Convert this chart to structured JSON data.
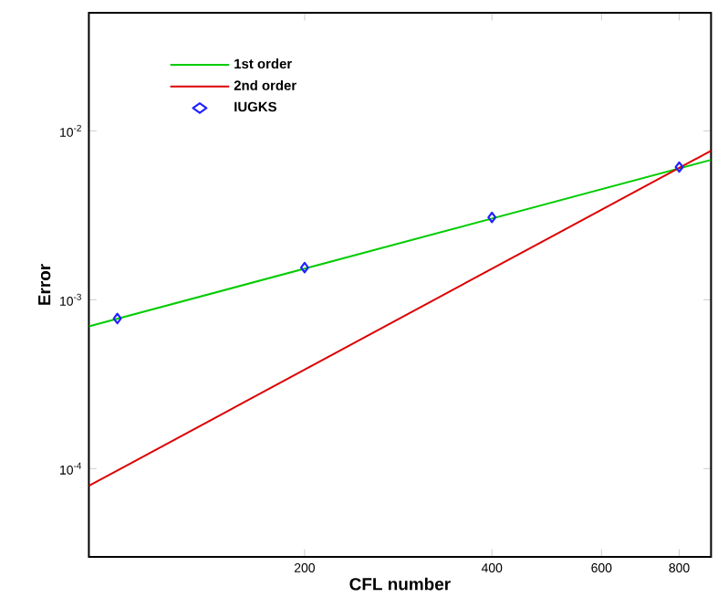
{
  "chart_data": {
    "type": "line",
    "xlabel": "CFL number",
    "ylabel": "Error",
    "log": "xy",
    "xlim": [
      90,
      900
    ],
    "ylim": [
      3e-05,
      0.05
    ],
    "xticks": [
      200,
      400,
      600,
      800
    ],
    "yticks": [
      {
        "value": 0.0001,
        "label": "10$^{-4}$"
      },
      {
        "value": 0.001,
        "label": "10$^{-3}$"
      },
      {
        "value": 0.01,
        "label": "10$^{-2}$"
      }
    ],
    "legend": "top left",
    "grid": false,
    "series": [
      {
        "name": "1st  order",
        "color": "#00cc00",
        "line_style": "solid",
        "marker": "none",
        "x": [
          90,
          900
        ],
        "values": [
          0.000695,
          0.00673
        ]
      },
      {
        "name": "2nd order",
        "color": "#dd0000",
        "line_style": "solid",
        "marker": "none",
        "x": [
          90,
          900
        ],
        "values": [
          7.9e-05,
          0.00762
        ]
      },
      {
        "name": "IUGKS",
        "type": "scatter",
        "color": "#2222ff",
        "marker": "diamond",
        "x": [
          100,
          200,
          400,
          800
        ],
        "values": [
          0.000774,
          0.00155,
          0.00307,
          0.0061
        ]
      }
    ]
  }
}
